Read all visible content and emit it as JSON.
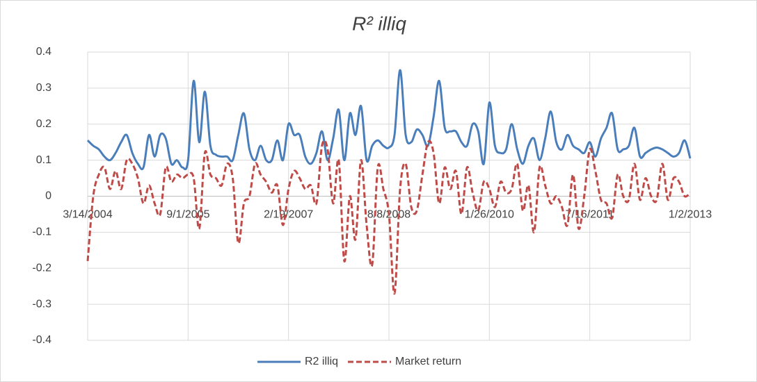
{
  "chart_data": {
    "type": "line",
    "title": "R² illiq",
    "categories": [
      "3/14/2004",
      null,
      null,
      null,
      null,
      null,
      null,
      null,
      null,
      null,
      null,
      null,
      null,
      null,
      null,
      null,
      null,
      null,
      "9/1/2005",
      null,
      null,
      null,
      null,
      null,
      null,
      null,
      null,
      null,
      null,
      null,
      null,
      null,
      null,
      null,
      null,
      null,
      "2/19/2007",
      null,
      null,
      null,
      null,
      null,
      null,
      null,
      null,
      null,
      null,
      null,
      null,
      null,
      null,
      null,
      null,
      null,
      "8/8/2008",
      null,
      null,
      null,
      null,
      null,
      null,
      null,
      null,
      null,
      null,
      null,
      null,
      null,
      null,
      null,
      null,
      null,
      "1/26/2010",
      null,
      null,
      null,
      null,
      null,
      null,
      null,
      null,
      null,
      null,
      null,
      null,
      null,
      null,
      null,
      null,
      null,
      "7/16/2011",
      null,
      null,
      null,
      null,
      null,
      null,
      null,
      null,
      null,
      null,
      null,
      null,
      null,
      null,
      null,
      null,
      null,
      "1/2/2013"
    ],
    "series": [
      {
        "name": "R2 illiq",
        "color": "#4a7ebb",
        "dash": "solid",
        "values": [
          0.155,
          0.14,
          0.13,
          0.11,
          0.1,
          0.12,
          0.15,
          0.17,
          0.12,
          0.09,
          0.08,
          0.17,
          0.11,
          0.17,
          0.16,
          0.09,
          0.1,
          0.08,
          0.1,
          0.32,
          0.15,
          0.29,
          0.14,
          0.115,
          0.11,
          0.11,
          0.1,
          0.17,
          0.23,
          0.13,
          0.1,
          0.14,
          0.1,
          0.1,
          0.155,
          0.1,
          0.2,
          0.17,
          0.17,
          0.11,
          0.09,
          0.12,
          0.18,
          0.1,
          0.16,
          0.24,
          0.1,
          0.23,
          0.17,
          0.25,
          0.1,
          0.14,
          0.155,
          0.14,
          0.135,
          0.17,
          0.35,
          0.17,
          0.15,
          0.185,
          0.17,
          0.14,
          0.22,
          0.32,
          0.19,
          0.18,
          0.18,
          0.15,
          0.14,
          0.2,
          0.18,
          0.09,
          0.26,
          0.14,
          0.12,
          0.13,
          0.2,
          0.13,
          0.09,
          0.14,
          0.16,
          0.1,
          0.16,
          0.235,
          0.15,
          0.13,
          0.17,
          0.14,
          0.13,
          0.12,
          0.15,
          0.11,
          0.16,
          0.19,
          0.23,
          0.13,
          0.13,
          0.14,
          0.19,
          0.11,
          0.12,
          0.13,
          0.135,
          0.13,
          0.12,
          0.11,
          0.12,
          0.155,
          0.105
        ]
      },
      {
        "name": "Market return",
        "color": "#be4b48",
        "dash": "dashed",
        "values": [
          -0.18,
          0.0,
          0.06,
          0.08,
          0.02,
          0.07,
          0.02,
          0.1,
          0.09,
          0.05,
          -0.02,
          0.03,
          -0.02,
          -0.05,
          0.08,
          0.04,
          0.06,
          0.05,
          0.06,
          0.05,
          -0.09,
          0.12,
          0.06,
          0.05,
          0.03,
          0.09,
          0.05,
          -0.13,
          -0.02,
          0.0,
          0.09,
          0.06,
          0.04,
          0.01,
          0.03,
          -0.08,
          0.02,
          0.07,
          0.05,
          0.02,
          0.03,
          -0.02,
          0.14,
          0.13,
          -0.02,
          0.1,
          -0.18,
          0.0,
          -0.12,
          0.1,
          -0.08,
          -0.19,
          0.08,
          0.02,
          -0.05,
          -0.27,
          0.02,
          0.09,
          -0.03,
          -0.04,
          0.06,
          0.15,
          0.12,
          -0.02,
          0.08,
          0.02,
          0.07,
          -0.05,
          0.08,
          0.01,
          -0.04,
          0.04,
          0.02,
          -0.03,
          0.04,
          0.01,
          0.02,
          0.09,
          -0.04,
          0.03,
          -0.1,
          0.08,
          0.03,
          -0.02,
          0.0,
          -0.03,
          -0.08,
          0.06,
          -0.09,
          0.0,
          0.13,
          0.07,
          -0.01,
          -0.02,
          -0.06,
          0.06,
          0.0,
          -0.01,
          0.09,
          -0.01,
          0.05,
          0.0,
          -0.01,
          0.09,
          -0.01,
          0.05,
          0.04,
          0.0,
          0.01
        ]
      }
    ],
    "ylim": [
      -0.4,
      0.4
    ],
    "yticks": [
      -0.4,
      -0.3,
      -0.2,
      -0.1,
      0,
      0.1,
      0.2,
      0.3,
      0.4
    ],
    "grid": true,
    "legend": "bottom"
  }
}
